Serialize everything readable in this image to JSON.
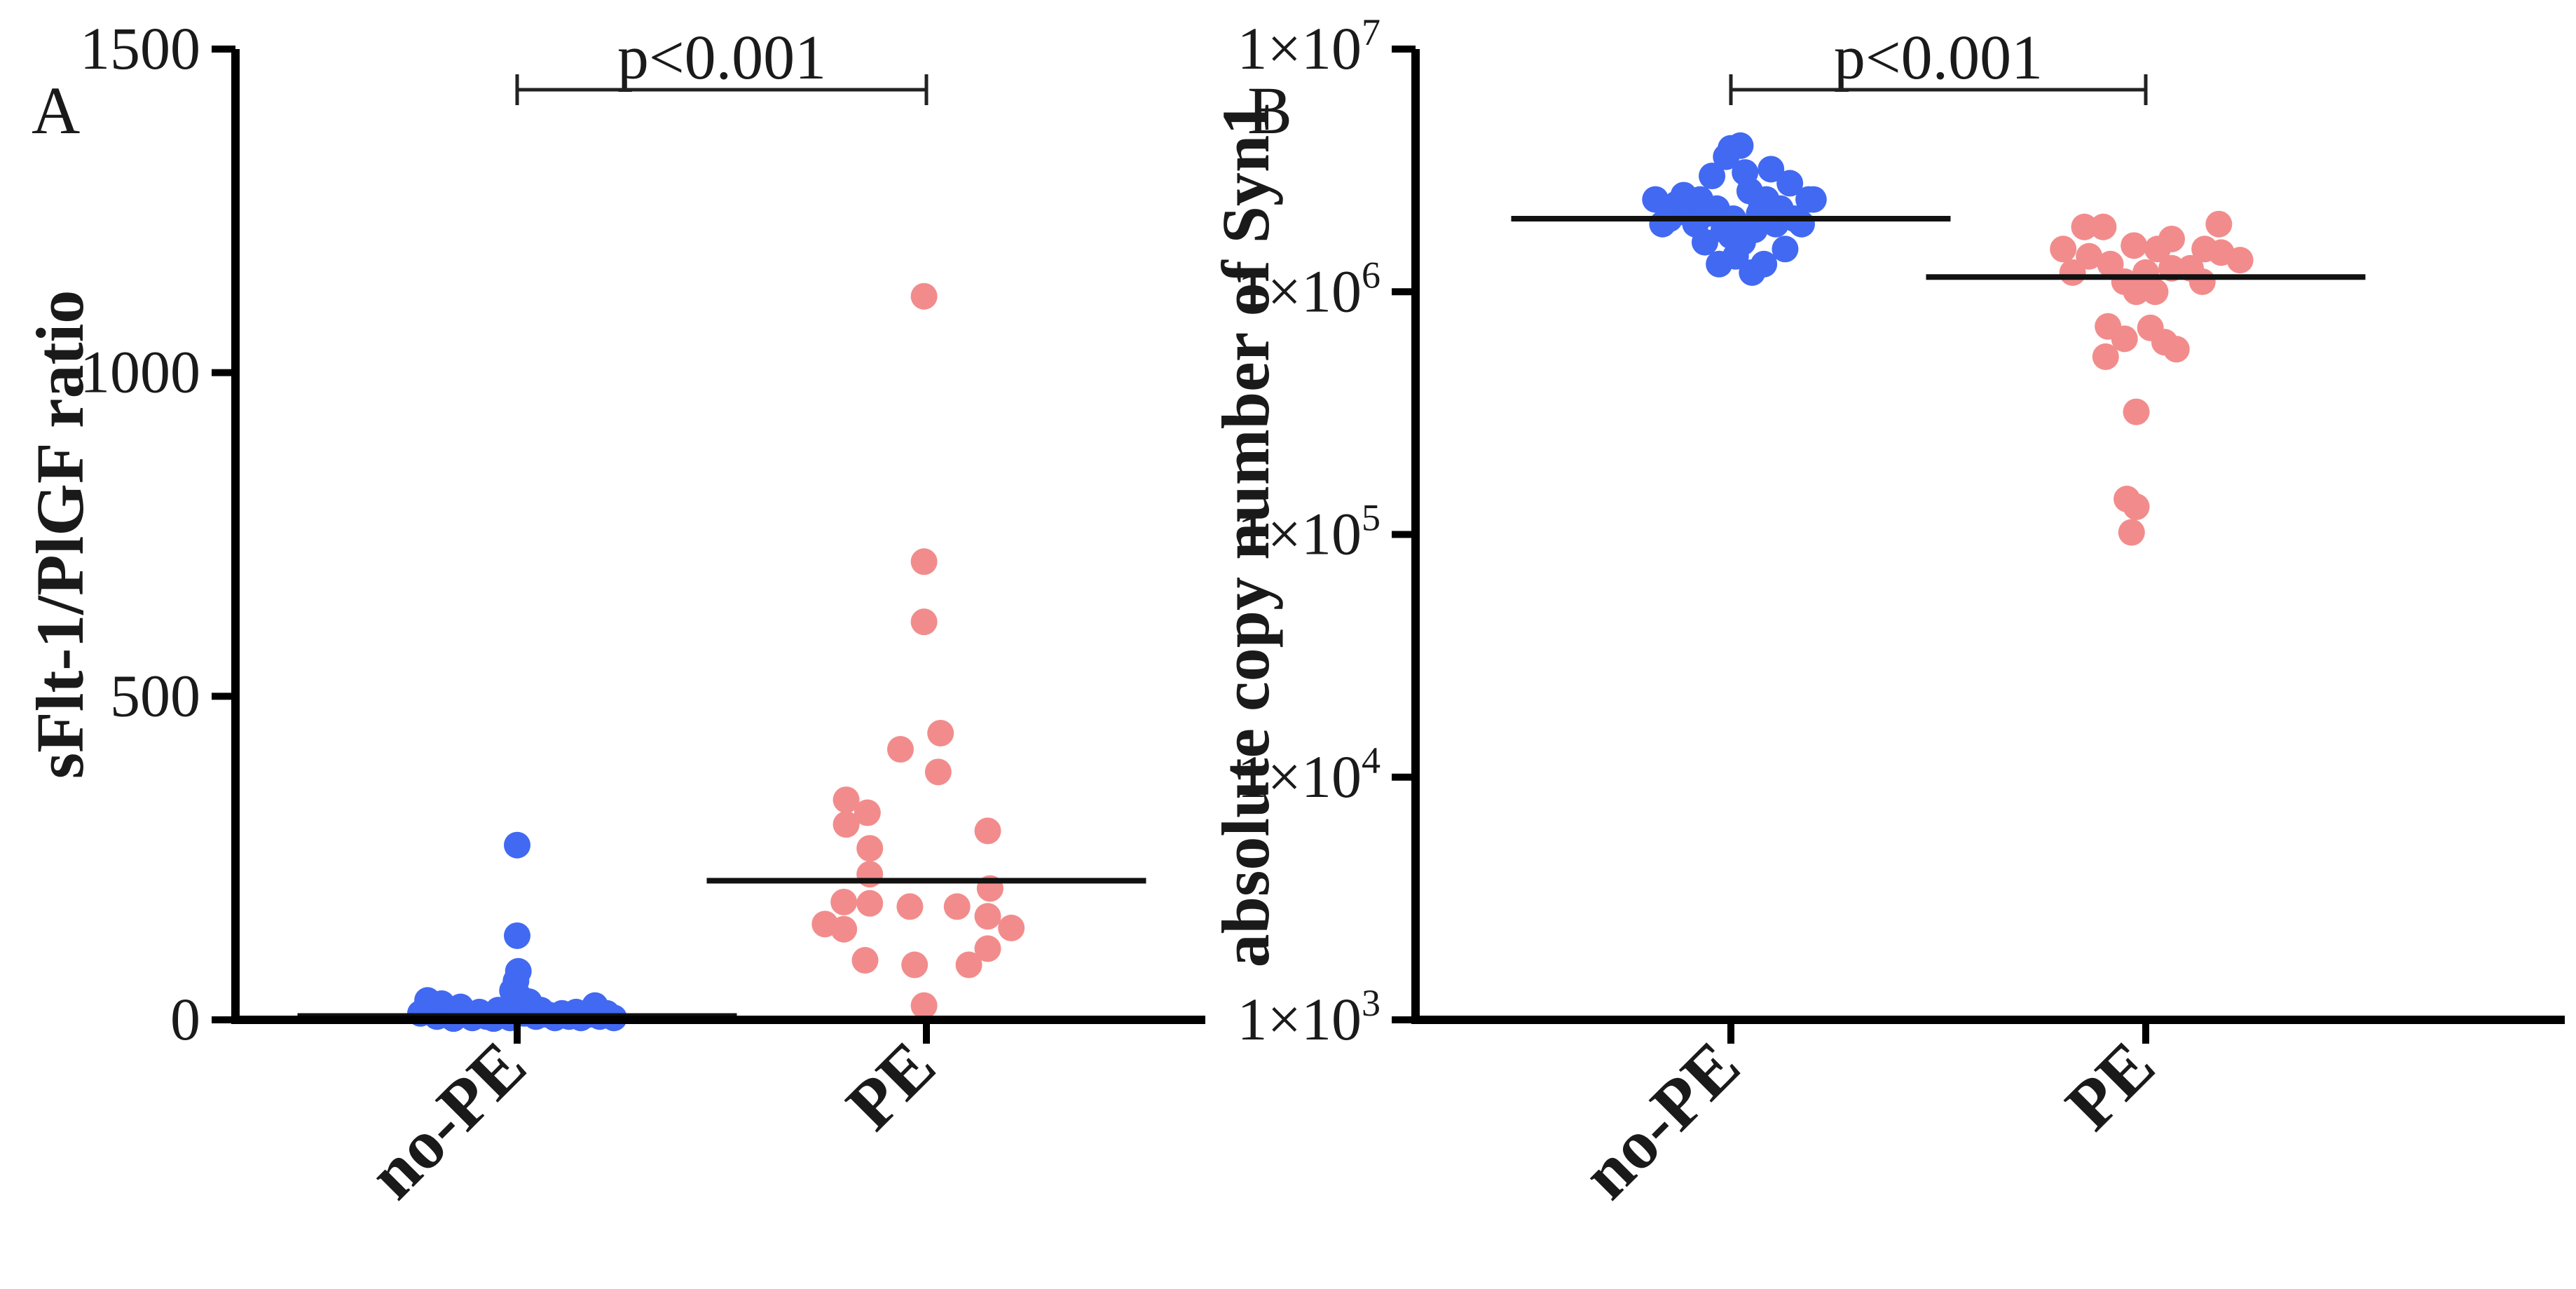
{
  "colors": {
    "no_pe": "#4169f2",
    "pe": "#f28c8c",
    "axis": "#000000",
    "median": "#111111"
  },
  "chart_data": [
    {
      "panel": "A",
      "type": "scatter",
      "title": "",
      "xlabel": "",
      "ylabel": "sFlt-1/PlGF ratio",
      "yscale": "linear",
      "ylim": [
        0,
        1500
      ],
      "yticks": [
        {
          "value": 0,
          "label": "0"
        },
        {
          "value": 500,
          "label": "500"
        },
        {
          "value": 1000,
          "label": "1000"
        },
        {
          "value": 1500,
          "label": "1500"
        }
      ],
      "categories": [
        "no-PE",
        "PE"
      ],
      "significance": {
        "label": "p<0.001",
        "from": "no-PE",
        "to": "PE"
      },
      "series": [
        {
          "name": "no-PE",
          "color": "#4169f2",
          "median": 6,
          "points": [
            {
              "offset": -0.41,
              "value": 10
            },
            {
              "offset": -0.38,
              "value": 30
            },
            {
              "offset": -0.34,
              "value": 5
            },
            {
              "offset": -0.32,
              "value": 25
            },
            {
              "offset": -0.29,
              "value": 15
            },
            {
              "offset": -0.27,
              "value": 2
            },
            {
              "offset": -0.24,
              "value": 20
            },
            {
              "offset": -0.22,
              "value": 8
            },
            {
              "offset": -0.19,
              "value": 3
            },
            {
              "offset": -0.16,
              "value": 12
            },
            {
              "offset": -0.13,
              "value": 5
            },
            {
              "offset": -0.1,
              "value": 2
            },
            {
              "offset": -0.08,
              "value": 15
            },
            {
              "offset": -0.05,
              "value": 8
            },
            {
              "offset": -0.03,
              "value": 3
            },
            {
              "offset": -0.02,
              "value": 45
            },
            {
              "offset": -0.01,
              "value": 20
            },
            {
              "offset": -0.005,
              "value": 60
            },
            {
              "offset": 0,
              "value": 270
            },
            {
              "offset": 0,
              "value": 130
            },
            {
              "offset": 0.005,
              "value": 75
            },
            {
              "offset": 0.01,
              "value": 35
            },
            {
              "offset": 0.03,
              "value": 10
            },
            {
              "offset": 0.05,
              "value": 28
            },
            {
              "offset": 0.08,
              "value": 5
            },
            {
              "offset": 0.1,
              "value": 15
            },
            {
              "offset": 0.13,
              "value": 8
            },
            {
              "offset": 0.16,
              "value": 3
            },
            {
              "offset": 0.19,
              "value": 10
            },
            {
              "offset": 0.22,
              "value": 5
            },
            {
              "offset": 0.25,
              "value": 12
            },
            {
              "offset": 0.27,
              "value": 3
            },
            {
              "offset": 0.3,
              "value": 8
            },
            {
              "offset": 0.33,
              "value": 22
            },
            {
              "offset": 0.35,
              "value": 5
            },
            {
              "offset": 0.38,
              "value": 10
            },
            {
              "offset": 0.41,
              "value": 3
            }
          ]
        },
        {
          "name": "PE",
          "color": "#f28c8c",
          "median": 215,
          "points": [
            {
              "offset": -0.43,
              "value": 148
            },
            {
              "offset": -0.35,
              "value": 140
            },
            {
              "offset": -0.35,
              "value": 182
            },
            {
              "offset": -0.34,
              "value": 340
            },
            {
              "offset": -0.34,
              "value": 302
            },
            {
              "offset": -0.25,
              "value": 320
            },
            {
              "offset": -0.24,
              "value": 265
            },
            {
              "offset": -0.24,
              "value": 225
            },
            {
              "offset": -0.24,
              "value": 180
            },
            {
              "offset": -0.26,
              "value": 92
            },
            {
              "offset": -0.11,
              "value": 418
            },
            {
              "offset": -0.07,
              "value": 175
            },
            {
              "offset": -0.05,
              "value": 85
            },
            {
              "offset": -0.01,
              "value": 1118
            },
            {
              "offset": -0.01,
              "value": 708
            },
            {
              "offset": -0.01,
              "value": 615
            },
            {
              "offset": -0.01,
              "value": 22
            },
            {
              "offset": 0.05,
              "value": 383
            },
            {
              "offset": 0.06,
              "value": 443
            },
            {
              "offset": 0.13,
              "value": 175
            },
            {
              "offset": 0.18,
              "value": 85
            },
            {
              "offset": 0.26,
              "value": 292
            },
            {
              "offset": 0.27,
              "value": 203
            },
            {
              "offset": 0.26,
              "value": 160
            },
            {
              "offset": 0.26,
              "value": 110
            },
            {
              "offset": 0.36,
              "value": 142
            }
          ]
        }
      ]
    },
    {
      "panel": "B",
      "type": "scatter",
      "title": "",
      "xlabel": "",
      "ylabel": "absolute copy number of Syn1",
      "yscale": "log10",
      "ylim": [
        1000,
        10000000
      ],
      "yticks": [
        {
          "value": 1000,
          "base": "1×10",
          "exp": "3"
        },
        {
          "value": 10000,
          "base": "1×10",
          "exp": "4"
        },
        {
          "value": 100000,
          "base": "1×10",
          "exp": "5"
        },
        {
          "value": 1000000,
          "base": "1×10",
          "exp": "6"
        },
        {
          "value": 10000000,
          "base": "1×10",
          "exp": "7"
        }
      ],
      "categories": [
        "no-PE",
        "PE"
      ],
      "significance": {
        "label": "p<0.001",
        "from": "no-PE",
        "to": "PE"
      },
      "series": [
        {
          "name": "no-PE",
          "color": "#4169f2",
          "median": 2000000,
          "points": [
            {
              "offset": -0.32,
              "value": 2400000
            },
            {
              "offset": -0.29,
              "value": 1900000
            },
            {
              "offset": -0.26,
              "value": 2000000
            },
            {
              "offset": -0.23,
              "value": 2300000
            },
            {
              "offset": -0.2,
              "value": 2500000
            },
            {
              "offset": -0.18,
              "value": 2100000
            },
            {
              "offset": -0.15,
              "value": 1900000
            },
            {
              "offset": -0.13,
              "value": 2400000
            },
            {
              "offset": -0.11,
              "value": 1600000
            },
            {
              "offset": -0.08,
              "value": 3000000
            },
            {
              "offset": -0.06,
              "value": 2200000
            },
            {
              "offset": -0.05,
              "value": 1300000
            },
            {
              "offset": -0.03,
              "value": 1800000
            },
            {
              "offset": -0.02,
              "value": 3600000
            },
            {
              "offset": 0,
              "value": 3900000
            },
            {
              "offset": 0.01,
              "value": 2000000
            },
            {
              "offset": 0.02,
              "value": 1400000
            },
            {
              "offset": 0.04,
              "value": 4000000
            },
            {
              "offset": 0.05,
              "value": 1600000
            },
            {
              "offset": 0.06,
              "value": 3100000
            },
            {
              "offset": 0.08,
              "value": 2600000
            },
            {
              "offset": 0.09,
              "value": 1200000
            },
            {
              "offset": 0.1,
              "value": 1800000
            },
            {
              "offset": 0.12,
              "value": 2100000
            },
            {
              "offset": 0.14,
              "value": 1300000
            },
            {
              "offset": 0.15,
              "value": 2400000
            },
            {
              "offset": 0.17,
              "value": 3200000
            },
            {
              "offset": 0.19,
              "value": 1900000
            },
            {
              "offset": 0.21,
              "value": 2200000
            },
            {
              "offset": 0.23,
              "value": 1500000
            },
            {
              "offset": 0.25,
              "value": 2800000
            },
            {
              "offset": 0.27,
              "value": 2000000
            },
            {
              "offset": 0.3,
              "value": 1900000
            },
            {
              "offset": 0.33,
              "value": 2400000
            },
            {
              "offset": 0.35,
              "value": 2400000
            },
            {
              "offset": -0.1,
              "value": 2100000
            },
            {
              "offset": 0.0,
              "value": 1700000
            },
            {
              "offset": 0.13,
              "value": 2300000
            }
          ]
        },
        {
          "name": "PE",
          "color": "#f28c8c",
          "median": 1150000,
          "points": [
            {
              "offset": -0.35,
              "value": 1500000
            },
            {
              "offset": -0.31,
              "value": 1200000
            },
            {
              "offset": -0.26,
              "value": 1850000
            },
            {
              "offset": -0.18,
              "value": 1850000
            },
            {
              "offset": -0.15,
              "value": 1300000
            },
            {
              "offset": -0.24,
              "value": 1400000
            },
            {
              "offset": -0.09,
              "value": 1100000
            },
            {
              "offset": -0.16,
              "value": 720000
            },
            {
              "offset": -0.17,
              "value": 540000
            },
            {
              "offset": -0.05,
              "value": 1550000
            },
            {
              "offset": -0.04,
              "value": 1000000
            },
            {
              "offset": -0.09,
              "value": 640000
            },
            {
              "offset": 0.0,
              "value": 1200000
            },
            {
              "offset": 0.02,
              "value": 710000
            },
            {
              "offset": 0.04,
              "value": 1000000
            },
            {
              "offset": 0.05,
              "value": 1500000
            },
            {
              "offset": 0.08,
              "value": 620000
            },
            {
              "offset": 0.11,
              "value": 1650000
            },
            {
              "offset": 0.11,
              "value": 1250000
            },
            {
              "offset": 0.19,
              "value": 1250000
            },
            {
              "offset": 0.13,
              "value": 580000
            },
            {
              "offset": 0.24,
              "value": 1100000
            },
            {
              "offset": 0.25,
              "value": 1500000
            },
            {
              "offset": 0.31,
              "value": 1900000
            },
            {
              "offset": 0.32,
              "value": 1450000
            },
            {
              "offset": 0.4,
              "value": 1350000
            },
            {
              "offset": -0.04,
              "value": 320000
            },
            {
              "offset": -0.08,
              "value": 140000
            },
            {
              "offset": -0.04,
              "value": 130000
            },
            {
              "offset": -0.06,
              "value": 102000
            }
          ]
        }
      ]
    }
  ]
}
